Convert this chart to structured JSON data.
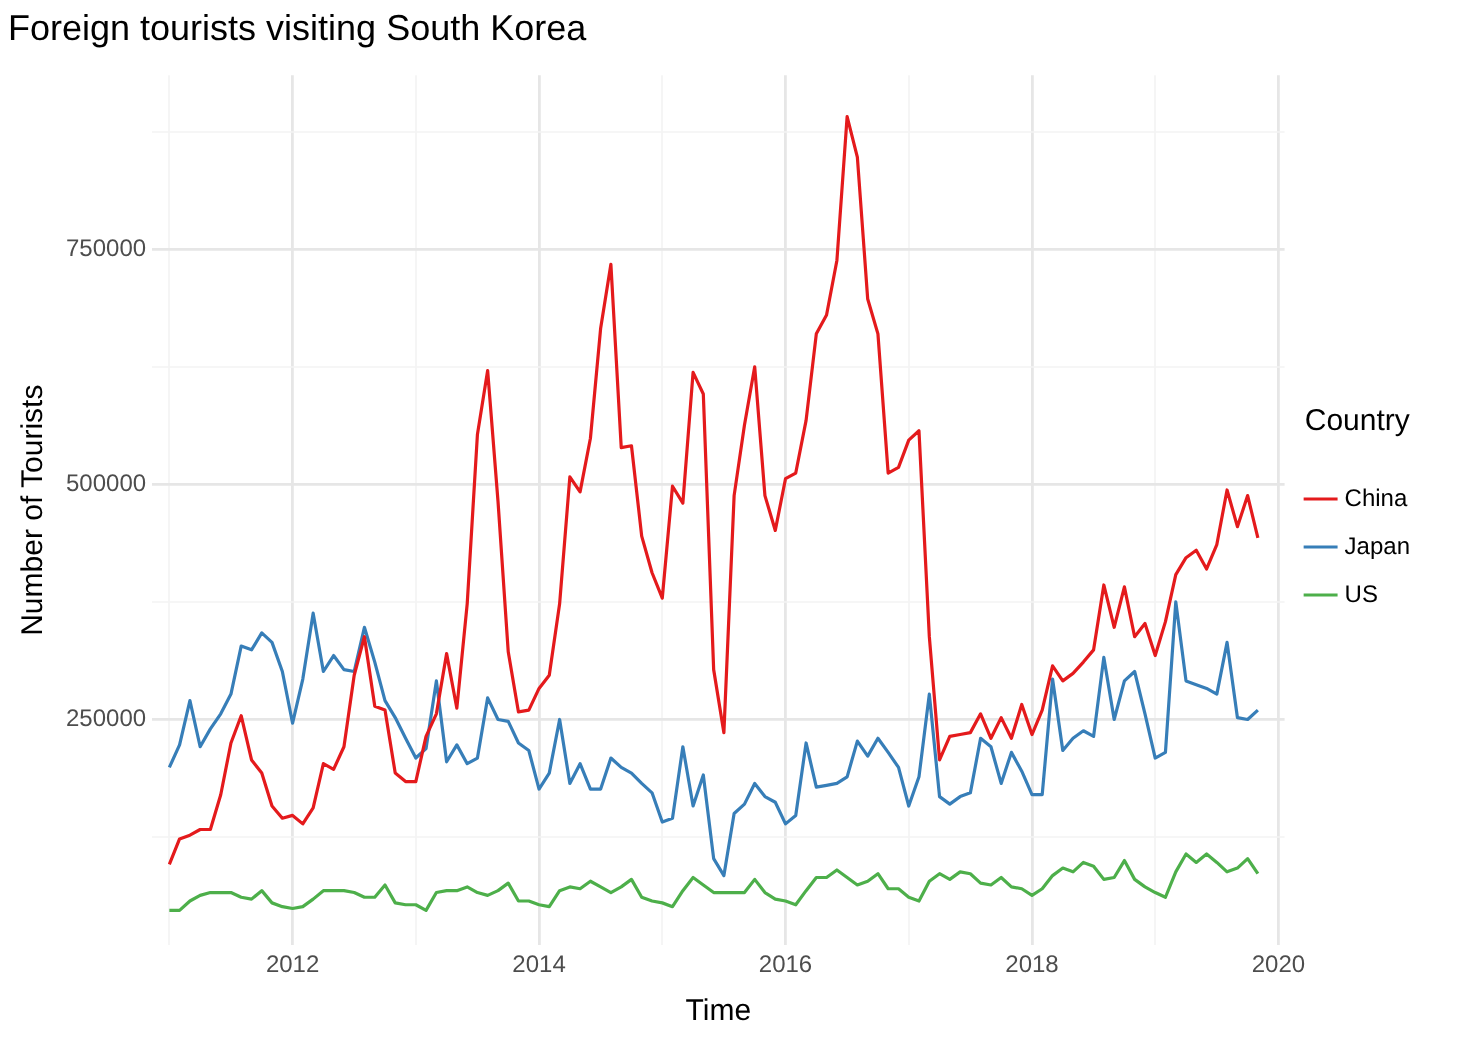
{
  "chart_data": {
    "type": "line",
    "title": "Foreign tourists visiting South Korea",
    "xlabel": "Time",
    "ylabel": "Number of Tourists",
    "legend_title": "Country",
    "legend": "right",
    "grid": true,
    "marker": "none",
    "line_style": "solid",
    "x": [
      2011,
      2011.083,
      2011.167,
      2011.25,
      2011.333,
      2011.417,
      2011.5,
      2011.583,
      2011.667,
      2011.75,
      2011.833,
      2011.917,
      2012,
      2012.083,
      2012.167,
      2012.25,
      2012.333,
      2012.417,
      2012.5,
      2012.583,
      2012.667,
      2012.75,
      2012.833,
      2012.917,
      2013,
      2013.083,
      2013.167,
      2013.25,
      2013.333,
      2013.417,
      2013.5,
      2013.583,
      2013.667,
      2013.75,
      2013.833,
      2013.917,
      2014,
      2014.083,
      2014.167,
      2014.25,
      2014.333,
      2014.417,
      2014.5,
      2014.583,
      2014.667,
      2014.75,
      2014.833,
      2014.917,
      2015,
      2015.083,
      2015.167,
      2015.25,
      2015.333,
      2015.417,
      2015.5,
      2015.583,
      2015.667,
      2015.75,
      2015.833,
      2015.917,
      2016,
      2016.083,
      2016.167,
      2016.25,
      2016.333,
      2016.417,
      2016.5,
      2016.583,
      2016.667,
      2016.75,
      2016.833,
      2016.917,
      2017,
      2017.083,
      2017.167,
      2017.25,
      2017.333,
      2017.417,
      2017.5,
      2017.583,
      2017.667,
      2017.75,
      2017.833,
      2017.917,
      2018,
      2018.083,
      2018.167,
      2018.25,
      2018.333,
      2018.417,
      2018.5,
      2018.583,
      2018.667,
      2018.75,
      2018.833,
      2018.917,
      2019,
      2019.083,
      2019.167,
      2019.25,
      2019.333,
      2019.417,
      2019.5,
      2019.583,
      2019.667,
      2019.75,
      2019.833
    ],
    "xlim": [
      2010.86,
      2020.05
    ],
    "xticks": [
      {
        "value": 2011,
        "label": null
      },
      2012,
      {
        "value": 2013,
        "label": null
      },
      2014,
      {
        "value": 2015,
        "label": null
      },
      2016,
      {
        "value": 2017,
        "label": null
      },
      2018,
      {
        "value": 2019,
        "label": null
      },
      2020
    ],
    "ylim": [
      10000,
      935000
    ],
    "yticks": [
      {
        "value": 125000,
        "label": null
      },
      250000,
      {
        "value": 375000,
        "label": null
      },
      500000,
      {
        "value": 625000,
        "label": null
      },
      750000,
      {
        "value": 875000,
        "label": null
      }
    ],
    "series": [
      {
        "name": "China",
        "color": "#e41a1c",
        "values": [
          96000,
          123000,
          127000,
          133000,
          133000,
          170000,
          225000,
          254000,
          207000,
          193000,
          158000,
          145000,
          148000,
          139000,
          156000,
          203000,
          197000,
          221000,
          297000,
          338000,
          264000,
          260000,
          193000,
          184000,
          184000,
          232000,
          256000,
          320000,
          262000,
          373000,
          553000,
          621000,
          482000,
          322000,
          258000,
          260000,
          283000,
          297000,
          373000,
          508000,
          492000,
          549000,
          666000,
          734000,
          539000,
          541000,
          445000,
          406000,
          379000,
          498000,
          480000,
          619000,
          596000,
          303000,
          236000,
          488000,
          563000,
          625000,
          488000,
          451000,
          506000,
          512000,
          568000,
          660000,
          680000,
          738000,
          891000,
          848000,
          697000,
          660000,
          512000,
          518000,
          547000,
          557000,
          338000,
          207000,
          232000,
          234000,
          236000,
          256000,
          230000,
          252000,
          230000,
          266000,
          234000,
          260000,
          307000,
          291000,
          299000,
          311000,
          324000,
          393000,
          348000,
          391000,
          338000,
          352000,
          318000,
          354000,
          404000,
          422000,
          430000,
          410000,
          436000,
          494000,
          455000,
          488000,
          443000
        ]
      },
      {
        "name": "Japan",
        "color": "#377eb8",
        "values": [
          199000,
          223000,
          270000,
          221000,
          240000,
          256000,
          277000,
          328000,
          324000,
          342000,
          332000,
          301000,
          246000,
          293000,
          363000,
          301000,
          318000,
          303000,
          301000,
          348000,
          311000,
          270000,
          252000,
          230000,
          209000,
          219000,
          291000,
          205000,
          223000,
          203000,
          209000,
          273000,
          250000,
          248000,
          225000,
          217000,
          176000,
          193000,
          250000,
          182000,
          203000,
          176000,
          176000,
          209000,
          199000,
          193000,
          182000,
          172000,
          141000,
          145000,
          221000,
          158000,
          191000,
          102000,
          84000,
          150000,
          160000,
          182000,
          168000,
          162000,
          139000,
          148000,
          225000,
          178000,
          180000,
          182000,
          189000,
          227000,
          211000,
          230000,
          215000,
          199000,
          158000,
          189000,
          277000,
          168000,
          160000,
          168000,
          172000,
          230000,
          221000,
          182000,
          215000,
          195000,
          170000,
          170000,
          293000,
          217000,
          230000,
          238000,
          232000,
          316000,
          250000,
          291000,
          301000,
          256000,
          209000,
          215000,
          375000,
          291000,
          287000,
          283000,
          277000,
          332000,
          252000,
          250000,
          260000
        ]
      },
      {
        "name": "US",
        "color": "#4daf4a",
        "values": [
          47000,
          47000,
          57000,
          63000,
          66000,
          66000,
          66000,
          61000,
          59000,
          68000,
          55000,
          51000,
          49000,
          51000,
          59000,
          68000,
          68000,
          68000,
          66000,
          61000,
          61000,
          74000,
          55000,
          53000,
          53000,
          47000,
          66000,
          68000,
          68000,
          72000,
          66000,
          63000,
          68000,
          76000,
          57000,
          57000,
          53000,
          51000,
          68000,
          72000,
          70000,
          78000,
          72000,
          66000,
          72000,
          80000,
          61000,
          57000,
          55000,
          51000,
          68000,
          82000,
          74000,
          66000,
          66000,
          66000,
          66000,
          80000,
          66000,
          59000,
          57000,
          53000,
          68000,
          82000,
          82000,
          90000,
          82000,
          74000,
          78000,
          86000,
          70000,
          70000,
          61000,
          57000,
          78000,
          86000,
          80000,
          88000,
          86000,
          76000,
          74000,
          82000,
          72000,
          70000,
          63000,
          70000,
          84000,
          92000,
          88000,
          98000,
          94000,
          80000,
          82000,
          100000,
          80000,
          72000,
          66000,
          61000,
          88000,
          107000,
          98000,
          107000,
          98000,
          88000,
          92000,
          102000,
          86000
        ]
      }
    ]
  }
}
